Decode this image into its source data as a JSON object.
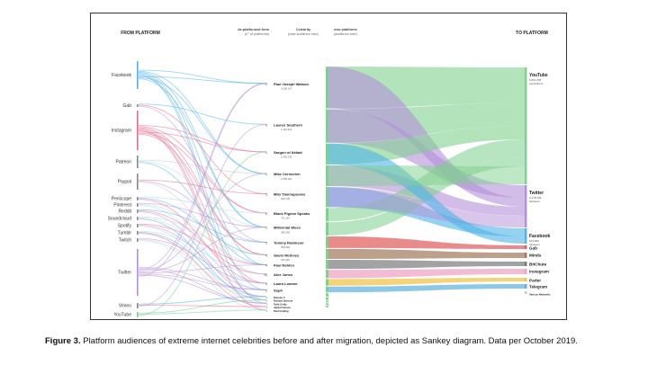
{
  "figure": {
    "caption_label": "Figure 3.",
    "caption_text": " Platform audiences of extreme internet celebrities before and after migration, depicted as Sankey diagram. Data per October 2019."
  },
  "headers": {
    "from_platform": "FROM PLATFORM",
    "deplatformed_line1": "de-platformed from",
    "deplatformed_line2": "(n° of platforms)",
    "celebrity_line1": "Celebrity",
    "celebrity_line2": "(new audience size)",
    "new_platforms_line1": "new platforms",
    "new_platforms_line2": "(audience size)",
    "to_platform": "TO PLATFORM"
  },
  "from_platforms": [
    {
      "label": "Facebook",
      "color": "#4fb3e8"
    },
    {
      "label": "Gab",
      "color": "#888888"
    },
    {
      "label": "Instagram",
      "color": "#e86a8a"
    },
    {
      "label": "Patreon",
      "color": "#888888"
    },
    {
      "label": "Paypal",
      "color": "#888888"
    },
    {
      "label": "Periscope",
      "color": "#888888"
    },
    {
      "label": "Pinterest",
      "color": "#888888"
    },
    {
      "label": "Reddit",
      "color": "#888888"
    },
    {
      "label": "Soundcloud",
      "color": "#888888"
    },
    {
      "label": "Spotify",
      "color": "#888888"
    },
    {
      "label": "Tumblr",
      "color": "#888888"
    },
    {
      "label": "Twitch",
      "color": "#888888"
    },
    {
      "label": "Twitter",
      "color": "#b48fd8"
    },
    {
      "label": "Vimeo",
      "color": "#888888"
    },
    {
      "label": "YouTube",
      "color": "#6fcf8c"
    }
  ],
  "celebrities": [
    {
      "n": "2",
      "name": "Paul Joseph Watson",
      "size": "3,068,107"
    },
    {
      "n": "0",
      "name": "Lauren Southern",
      "size": "1,442,911"
    },
    {
      "n": "1",
      "name": "Sargon of Akkad",
      "size": "1,056,235"
    },
    {
      "n": "1",
      "name": "Mike Cernovich",
      "size": "1,083,181"
    },
    {
      "n": "3",
      "name": "Milo Yiannopoulos",
      "size": "948,735"
    },
    {
      "n": "0",
      "name": "Black Pigeon Speaks",
      "size": "731,187"
    },
    {
      "n": "1",
      "name": "Millennial Woes",
      "size": "358,369"
    },
    {
      "n": "3",
      "name": "Tommy Robinson",
      "size": "358,369"
    },
    {
      "n": "4",
      "name": "Gavin McInnes",
      "size": "190,451"
    },
    {
      "n": "4",
      "name": "Paul Nehlen",
      "size": ""
    },
    {
      "n": "10",
      "name": "Alex Jones",
      "size": ""
    },
    {
      "n": "4",
      "name": "Laura Loomer",
      "size": ""
    },
    {
      "n": "2",
      "name": "Soph",
      "size": ""
    },
    {
      "n": "1",
      "name": "Ricardo V",
      "size": ""
    },
    {
      "n": "1",
      "name": "Richard Spencer",
      "size": ""
    },
    {
      "n": "1",
      "name": "Faith Goldy",
      "size": ""
    },
    {
      "n": "1",
      "name": "Jayda Fransen",
      "size": ""
    },
    {
      "n": "1",
      "name": "Paul Golding",
      "size": ""
    }
  ],
  "to_platforms": [
    {
      "label": "YouTube",
      "size": "6,691,255",
      "unit": "subscribers",
      "color": "#7ed08e"
    },
    {
      "label": "Twitter",
      "size": "2,278,136",
      "unit": "followers",
      "color": "#b48fd8"
    },
    {
      "label": "Facebook",
      "size": "643,900",
      "unit": "followers",
      "color": "#4fb3e8"
    },
    {
      "label": "Gab",
      "size": "",
      "unit": "",
      "color": "#e05a5a"
    },
    {
      "label": "Minds",
      "size": "",
      "unit": "",
      "color": "#a0785a"
    },
    {
      "label": "BitChute",
      "size": "",
      "unit": "",
      "color": "#7a7a7a"
    },
    {
      "label": "Instagram",
      "size": "",
      "unit": "",
      "color": "#f0a0c0"
    },
    {
      "label": "Parler",
      "size": "",
      "unit": "",
      "color": "#f0c040"
    },
    {
      "label": "Telegram",
      "size": "",
      "unit": "",
      "color": "#5ab0e0"
    },
    {
      "label": "Various Networks",
      "size": "",
      "unit": "",
      "color": "#c8c8c8"
    }
  ]
}
